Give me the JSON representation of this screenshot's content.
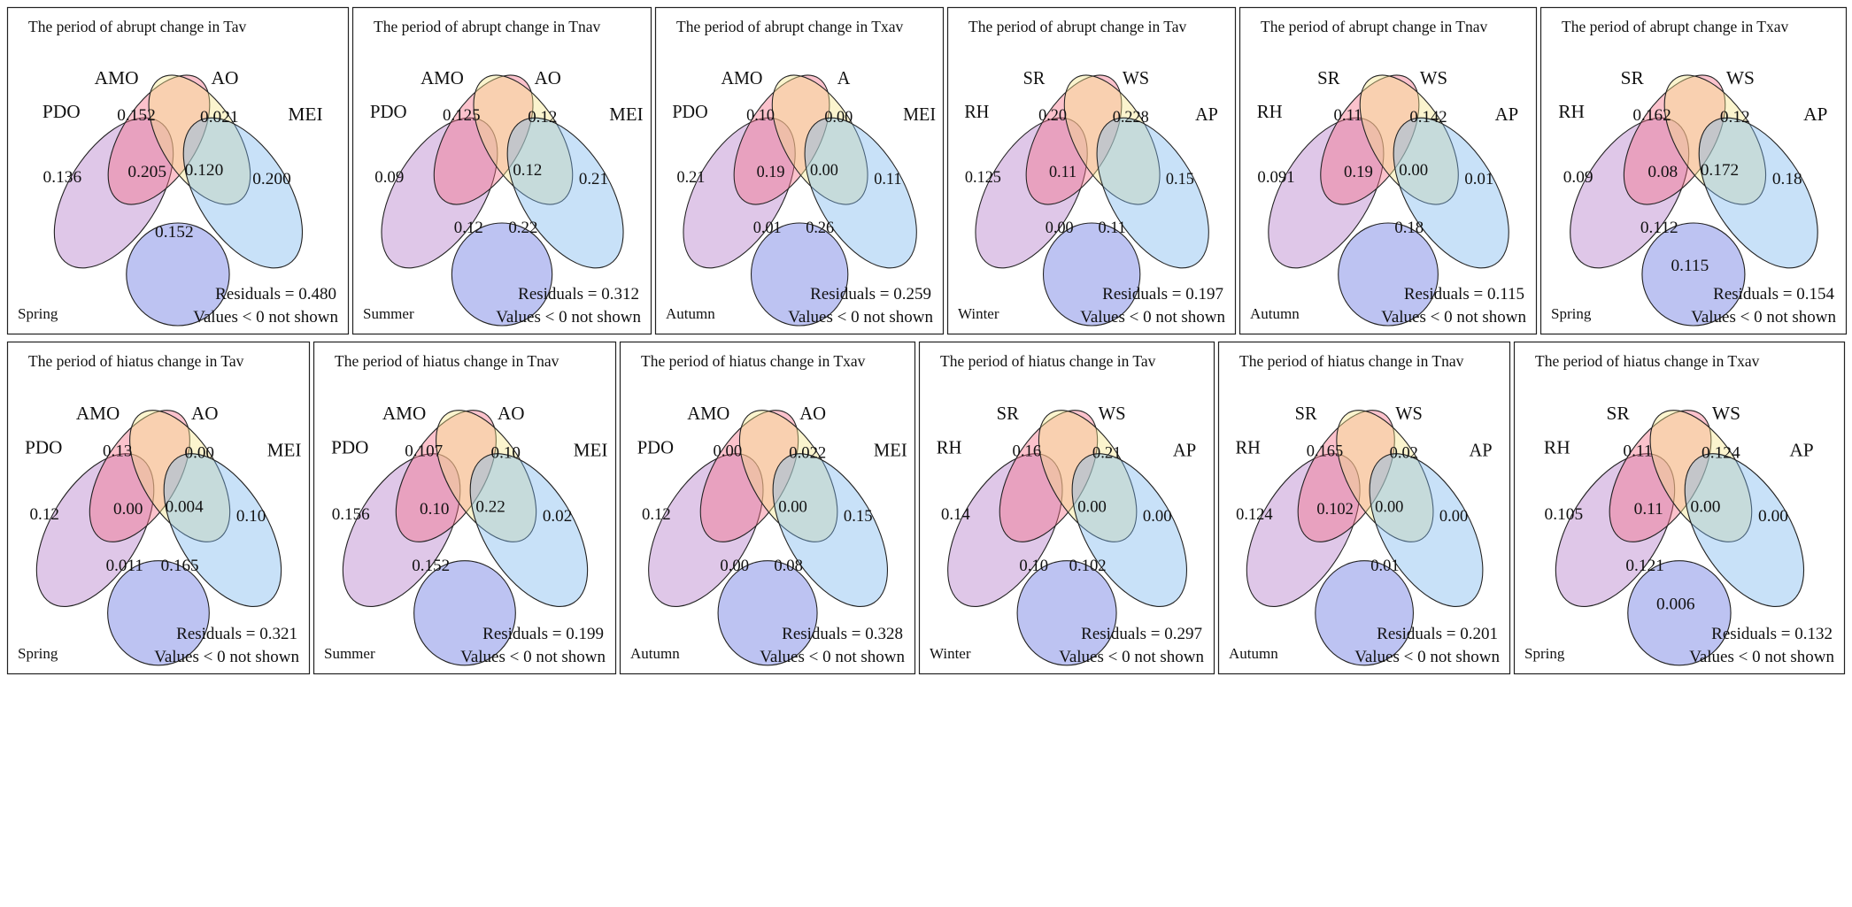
{
  "figure": {
    "rows": [
      {
        "period": "abrupt",
        "panels": [
          {
            "title": "The period of abrupt change in Tav",
            "season": "Spring",
            "sets": [
              "PDO",
              "AMO",
              "AO",
              "MEI"
            ],
            "values": {
              "a": "0.136",
              "b": "0.152",
              "c": "0.021",
              "d": "0.200",
              "ab": "0.205",
              "bc": "0.120",
              "ad": "0.152"
            },
            "residuals": "Residuals = 0.480",
            "note": "Values < 0 not shown"
          },
          {
            "title": "The period of abrupt change in Tnav",
            "season": "Summer",
            "sets": [
              "PDO",
              "AMO",
              "AO",
              "MEI"
            ],
            "values": {
              "a": "0.09",
              "b": "0.125",
              "c": "0.12",
              "d": "0.21",
              "ab": "",
              "bc": "0.12",
              "ac": "0.12",
              "bd": "0.22"
            },
            "residuals": "Residuals = 0.312",
            "note": "Values < 0 not shown"
          },
          {
            "title": "The period of abrupt change in Txav",
            "season": "Autumn",
            "sets": [
              "PDO",
              "AMO",
              "A",
              "MEI"
            ],
            "values": {
              "a": "0.21",
              "b": "0.10",
              "c": "0.00",
              "d": "0.11",
              "ab": "0.19",
              "bc": "0.00",
              "ac": "0.01",
              "bd": "0.26"
            },
            "residuals": "Residuals = 0.259",
            "note": "Values < 0 not shown"
          },
          {
            "title": "The period of abrupt change in Tav",
            "season": "Winter",
            "sets": [
              "RH",
              "SR",
              "WS",
              "AP"
            ],
            "values": {
              "a": "0.125",
              "b": "0.20",
              "c": "0.228",
              "d": "0.15",
              "ab": "0.11",
              "ac": "0.00",
              "bd": "0.11"
            },
            "residuals": "Residuals = 0.197",
            "note": "Values < 0 not shown"
          },
          {
            "title": "The period of abrupt change in Tnav",
            "season": "Autumn",
            "sets": [
              "RH",
              "SR",
              "WS",
              "AP"
            ],
            "values": {
              "a": "0.091",
              "b": "0.11",
              "c": "0.142",
              "d": "0.01",
              "ab": "0.19",
              "bc": "0.00",
              "bd": "0.18"
            },
            "residuals": "Residuals = 0.115",
            "note": "Values < 0 not shown"
          },
          {
            "title": "The period of abrupt change in Txav",
            "season": "Spring",
            "sets": [
              "RH",
              "SR",
              "WS",
              "AP"
            ],
            "values": {
              "a": "0.09",
              "b": "0.162",
              "c": "0.12",
              "d": "0.18",
              "ab": "0.08",
              "bc": "0.172",
              "ac": "0.112",
              "cd": "0.115"
            },
            "residuals": "Residuals = 0.154",
            "note": "Values < 0 not shown"
          }
        ]
      },
      {
        "period": "hiatus",
        "panels": [
          {
            "title": "The period of hiatus change in Tav",
            "season": "Spring",
            "sets": [
              "PDO",
              "AMO",
              "AO",
              "MEI"
            ],
            "values": {
              "a": "0.12",
              "b": "0.13",
              "c": "0.00",
              "d": "0.10",
              "ab": "0.00",
              "bc": "0.004",
              "ac": "0.011",
              "bd": "0.165"
            },
            "residuals": "Residuals = 0.321",
            "note": "Values < 0 not shown"
          },
          {
            "title": "The period of hiatus change in Tnav",
            "season": "Summer",
            "sets": [
              "PDO",
              "AMO",
              "AO",
              "MEI"
            ],
            "values": {
              "a": "0.156",
              "b": "0.107",
              "c": "0.10",
              "d": "0.02",
              "ab": "0.10",
              "bc": "0.22",
              "ac": "0.152"
            },
            "residuals": "Residuals = 0.199",
            "note": "Values < 0 not shown"
          },
          {
            "title": "The period of hiatus change in Txav",
            "season": "Autumn",
            "sets": [
              "PDO",
              "AMO",
              "AO",
              "MEI"
            ],
            "values": {
              "a": "0.12",
              "b": "0.00",
              "c": "0.022",
              "d": "0.15",
              "bc": "0.00",
              "ac": "0.00",
              "bd": "0.08"
            },
            "residuals": "Residuals = 0.328",
            "note": "Values < 0 not shown"
          },
          {
            "title": "The period of hiatus change in Tav",
            "season": "Winter",
            "sets": [
              "RH",
              "SR",
              "WS",
              "AP"
            ],
            "values": {
              "a": "0.14",
              "b": "0.16",
              "c": "0.21",
              "d": "0.00",
              "bc": "0.00",
              "ac": "0.10",
              "bd": "0.102"
            },
            "residuals": "Residuals = 0.297",
            "note": "Values < 0 not shown"
          },
          {
            "title": "The period of hiatus change in Tnav",
            "season": "Autumn",
            "sets": [
              "RH",
              "SR",
              "WS",
              "AP"
            ],
            "values": {
              "a": "0.124",
              "b": "0.165",
              "c": "0.02",
              "d": "0.00",
              "ab": "0.102",
              "bc": "0.00",
              "bd": "0.01"
            },
            "residuals": "Residuals = 0.201",
            "note": "Values < 0 not shown"
          },
          {
            "title": "The period of hiatus change in Txav",
            "season": "Spring",
            "sets": [
              "RH",
              "SR",
              "WS",
              "AP"
            ],
            "values": {
              "a": "0.105",
              "b": "0.11",
              "c": "0.124",
              "d": "0.00",
              "ab": "0.11",
              "bc": "0.00",
              "ac": "0.121",
              "cd": "0.006"
            },
            "residuals": "Residuals = 0.132",
            "note": "Values < 0 not shown"
          }
        ]
      }
    ]
  }
}
